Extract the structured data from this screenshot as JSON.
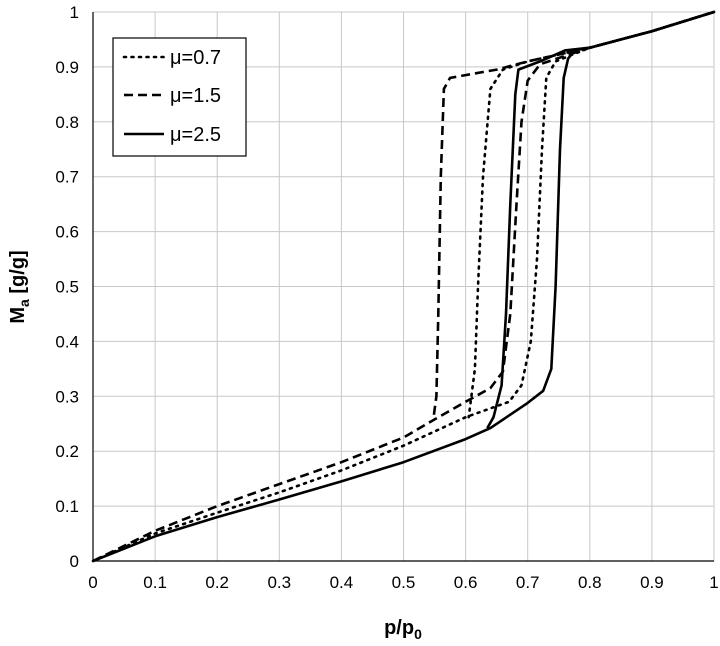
{
  "chart_data": {
    "type": "line",
    "title": "",
    "xlabel": "p/p",
    "xlabel_sub": "0",
    "ylabel": "M",
    "ylabel_sub": "a",
    "ylabel_suffix": " [g/g]",
    "xlim": [
      0,
      1
    ],
    "ylim": [
      0,
      1
    ],
    "xticks": [
      0,
      0.1,
      0.2,
      0.3,
      0.4,
      0.5,
      0.6,
      0.7,
      0.8,
      0.9,
      1
    ],
    "yticks": [
      0,
      0.1,
      0.2,
      0.3,
      0.4,
      0.5,
      0.6,
      0.7,
      0.8,
      0.9,
      1
    ],
    "xtick_labels": [
      "0",
      "0.1",
      "0.2",
      "0.3",
      "0.4",
      "0.5",
      "0.6",
      "0.7",
      "0.8",
      "0.9",
      "1"
    ],
    "ytick_labels": [
      "0",
      "0.1",
      "0.2",
      "0.3",
      "0.4",
      "0.5",
      "0.6",
      "0.7",
      "0.8",
      "0.9",
      "1"
    ],
    "grid": true,
    "legend_position": "top-left",
    "colors": {
      "line": "#000000",
      "grid": "#c8c8c8",
      "axis": "#000000"
    },
    "series": [
      {
        "name": "μ=0.7",
        "style": "dotted",
        "adsorption": [
          [
            0,
            0
          ],
          [
            0.1,
            0.05
          ],
          [
            0.2,
            0.088
          ],
          [
            0.3,
            0.125
          ],
          [
            0.4,
            0.165
          ],
          [
            0.5,
            0.21
          ],
          [
            0.6,
            0.262
          ],
          [
            0.67,
            0.29
          ],
          [
            0.69,
            0.32
          ],
          [
            0.705,
            0.4
          ],
          [
            0.715,
            0.55
          ],
          [
            0.723,
            0.75
          ],
          [
            0.73,
            0.88
          ],
          [
            0.745,
            0.91
          ],
          [
            0.8,
            0.935
          ],
          [
            0.9,
            0.965
          ],
          [
            1,
            1
          ]
        ],
        "desorption": [
          [
            1,
            1
          ],
          [
            0.9,
            0.965
          ],
          [
            0.8,
            0.935
          ],
          [
            0.7,
            0.91
          ],
          [
            0.66,
            0.895
          ],
          [
            0.64,
            0.86
          ],
          [
            0.628,
            0.7
          ],
          [
            0.62,
            0.5
          ],
          [
            0.615,
            0.35
          ],
          [
            0.605,
            0.262
          ]
        ]
      },
      {
        "name": "μ=1.5",
        "style": "dashed",
        "adsorption": [
          [
            0,
            0
          ],
          [
            0.1,
            0.055
          ],
          [
            0.2,
            0.1
          ],
          [
            0.3,
            0.14
          ],
          [
            0.4,
            0.18
          ],
          [
            0.5,
            0.225
          ],
          [
            0.55,
            0.258
          ],
          [
            0.6,
            0.29
          ],
          [
            0.64,
            0.315
          ],
          [
            0.66,
            0.345
          ],
          [
            0.672,
            0.45
          ],
          [
            0.682,
            0.65
          ],
          [
            0.69,
            0.8
          ],
          [
            0.7,
            0.875
          ],
          [
            0.72,
            0.905
          ],
          [
            0.8,
            0.935
          ],
          [
            0.9,
            0.965
          ],
          [
            1,
            1
          ]
        ],
        "desorption": [
          [
            1,
            1
          ],
          [
            0.9,
            0.965
          ],
          [
            0.8,
            0.935
          ],
          [
            0.7,
            0.91
          ],
          [
            0.65,
            0.895
          ],
          [
            0.6,
            0.885
          ],
          [
            0.575,
            0.88
          ],
          [
            0.565,
            0.86
          ],
          [
            0.56,
            0.7
          ],
          [
            0.556,
            0.45
          ],
          [
            0.553,
            0.3
          ],
          [
            0.548,
            0.258
          ]
        ]
      },
      {
        "name": "μ=2.5",
        "style": "solid",
        "adsorption": [
          [
            0,
            0
          ],
          [
            0.1,
            0.045
          ],
          [
            0.2,
            0.08
          ],
          [
            0.3,
            0.112
          ],
          [
            0.4,
            0.145
          ],
          [
            0.5,
            0.18
          ],
          [
            0.6,
            0.222
          ],
          [
            0.64,
            0.242
          ],
          [
            0.7,
            0.288
          ],
          [
            0.725,
            0.31
          ],
          [
            0.738,
            0.35
          ],
          [
            0.745,
            0.5
          ],
          [
            0.752,
            0.75
          ],
          [
            0.758,
            0.88
          ],
          [
            0.765,
            0.915
          ],
          [
            0.775,
            0.93
          ],
          [
            0.8,
            0.935
          ],
          [
            0.9,
            0.965
          ],
          [
            1,
            1
          ]
        ],
        "desorption": [
          [
            1,
            1
          ],
          [
            0.9,
            0.965
          ],
          [
            0.8,
            0.935
          ],
          [
            0.76,
            0.93
          ],
          [
            0.72,
            0.91
          ],
          [
            0.685,
            0.895
          ],
          [
            0.68,
            0.85
          ],
          [
            0.672,
            0.65
          ],
          [
            0.665,
            0.45
          ],
          [
            0.658,
            0.32
          ],
          [
            0.645,
            0.262
          ],
          [
            0.635,
            0.242
          ]
        ]
      }
    ]
  }
}
